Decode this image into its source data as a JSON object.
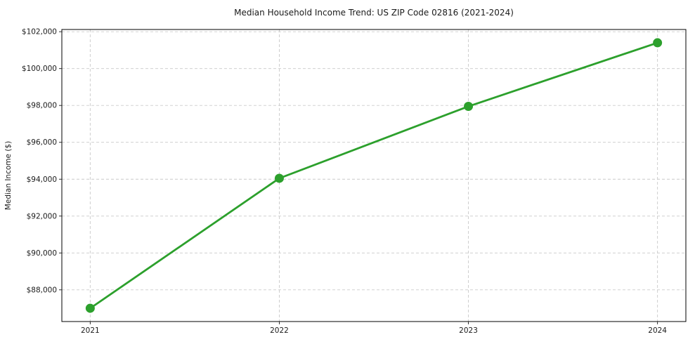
{
  "figure": {
    "background": "#ffffff"
  },
  "chart_data": {
    "type": "line",
    "title": "Median Household Income Trend: US ZIP Code 02816 (2021-2024)",
    "xlabel": "",
    "ylabel": "Median Income ($)",
    "x": [
      2021,
      2022,
      2023,
      2024
    ],
    "x_tick_labels": [
      "2021",
      "2022",
      "2023",
      "2024"
    ],
    "values": [
      87000,
      94050,
      97950,
      101400
    ],
    "y_ticks": [
      88000,
      90000,
      92000,
      94000,
      96000,
      98000,
      100000,
      102000
    ],
    "y_tick_labels": [
      "$88,000",
      "$90,000",
      "$92,000",
      "$94,000",
      "$96,000",
      "$98,000",
      "$100,000",
      "$102,000"
    ],
    "xlim": [
      2020.85,
      2024.15
    ],
    "ylim": [
      86280,
      102120
    ],
    "grid": true,
    "grid_style": "dashed",
    "legend": "none",
    "line_color": "#2ca02c",
    "marker_color": "#2ca02c",
    "marker": "circle"
  }
}
